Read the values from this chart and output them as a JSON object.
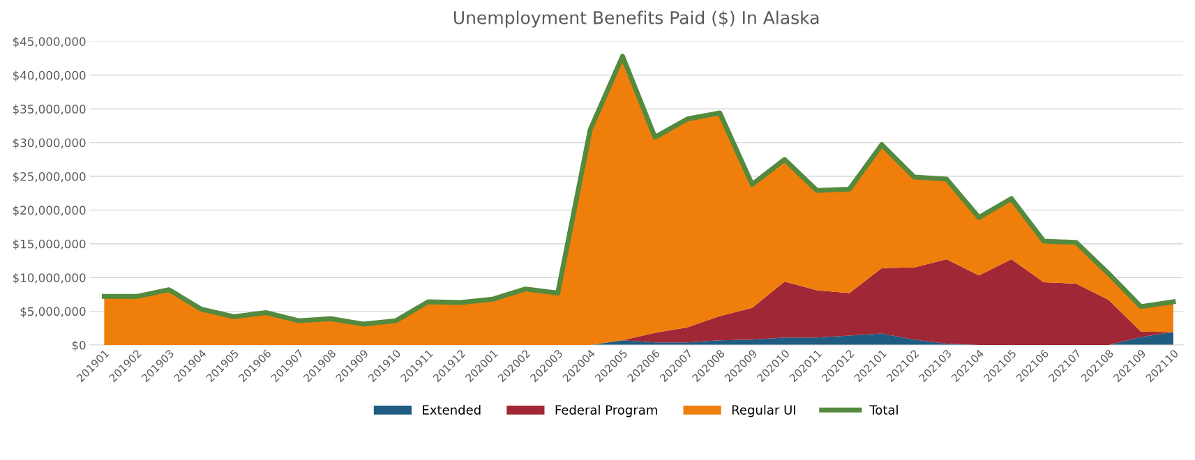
{
  "chart_data": {
    "type": "area",
    "title": "Unemployment Benefits Paid ($) In Alaska",
    "stacked": true,
    "categories": [
      "201901",
      "201902",
      "201903",
      "201904",
      "201905",
      "201906",
      "201907",
      "201908",
      "201909",
      "201910",
      "201911",
      "201912",
      "202001",
      "202002",
      "202003",
      "202004",
      "202005",
      "202006",
      "202007",
      "202008",
      "202009",
      "202010",
      "202011",
      "202012",
      "202101",
      "202102",
      "202103",
      "202104",
      "202105",
      "202106",
      "202107",
      "202108",
      "202109",
      "202110"
    ],
    "series": [
      {
        "name": "Extended",
        "color": "#1f5c82",
        "values": [
          0,
          0,
          0,
          0,
          0,
          0,
          0,
          0,
          0,
          0,
          0,
          0,
          0,
          0,
          0,
          0,
          700000,
          400000,
          400000,
          700000,
          800000,
          1100000,
          1100000,
          1400000,
          1700000,
          800000,
          200000,
          0,
          0,
          0,
          0,
          0,
          1200000,
          1900000
        ]
      },
      {
        "name": "Federal Program",
        "color": "#a02736",
        "values": [
          0,
          0,
          0,
          0,
          0,
          0,
          0,
          0,
          0,
          0,
          0,
          0,
          0,
          0,
          0,
          0,
          0,
          1400000,
          2200000,
          3600000,
          4700000,
          8300000,
          7000000,
          6300000,
          9700000,
          10700000,
          12500000,
          10300000,
          12700000,
          9300000,
          9100000,
          6700000,
          800000,
          0
        ]
      },
      {
        "name": "Regular UI",
        "color": "#ef7f0a",
        "values": [
          7200000,
          7200000,
          8200000,
          5300000,
          4200000,
          4800000,
          3600000,
          3900000,
          3100000,
          3600000,
          6400000,
          6300000,
          6800000,
          8300000,
          7700000,
          31900000,
          42100000,
          29000000,
          30900000,
          30100000,
          18300000,
          18100000,
          14800000,
          15400000,
          18300000,
          13400000,
          11900000,
          8600000,
          9000000,
          6100000,
          6100000,
          3900000,
          3700000,
          4500000
        ]
      },
      {
        "name": "Total",
        "type": "line",
        "color": "#538a3e",
        "values": [
          7200000,
          7200000,
          8200000,
          5300000,
          4200000,
          4800000,
          3600000,
          3900000,
          3100000,
          3600000,
          6400000,
          6300000,
          6800000,
          8300000,
          7700000,
          31900000,
          42800000,
          30800000,
          33500000,
          34400000,
          23800000,
          27500000,
          22900000,
          23100000,
          29700000,
          24900000,
          24600000,
          18900000,
          21700000,
          15400000,
          15200000,
          10600000,
          5700000,
          6400000
        ]
      }
    ],
    "ylim": [
      0,
      45000000
    ],
    "yticks": [
      {
        "value": 0,
        "label": "$0"
      },
      {
        "value": 5000000,
        "label": "$5,000,000"
      },
      {
        "value": 10000000,
        "label": "$10,000,000"
      },
      {
        "value": 15000000,
        "label": "$15,000,000"
      },
      {
        "value": 20000000,
        "label": "$20,000,000"
      },
      {
        "value": 25000000,
        "label": "$25,000,000"
      },
      {
        "value": 30000000,
        "label": "$30,000,000"
      },
      {
        "value": 35000000,
        "label": "$35,000,000"
      },
      {
        "value": 40000000,
        "label": "$40,000,000"
      },
      {
        "value": 45000000,
        "label": "$45,000,000"
      }
    ],
    "grid": "y",
    "legend": "bottom"
  }
}
